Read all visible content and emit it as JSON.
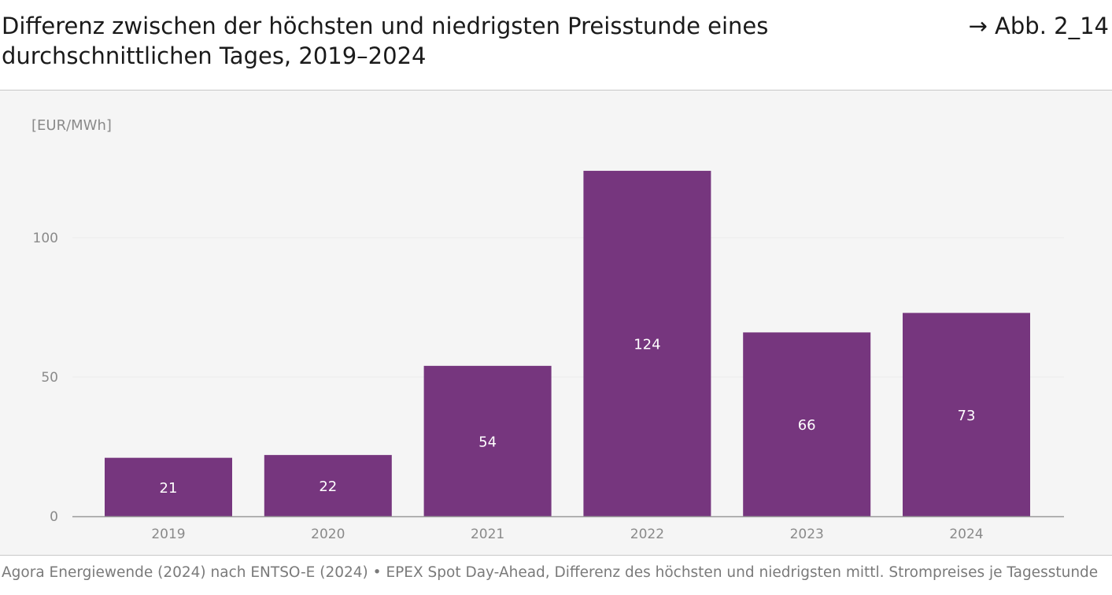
{
  "header": {
    "title": "Differenz zwischen der höchsten und niedrigsten Preisstunde eines durchschnittlichen Tages, 2019–2024",
    "figure_ref": "→ Abb. 2_14"
  },
  "footer": {
    "source": "Agora Energiewende (2024) nach ENTSO-E (2024) • EPEX Spot Day-Ahead, Differenz des höchsten und niedrigsten mittl. Strompreises je Tagesstunde"
  },
  "chart_data": {
    "type": "bar",
    "title": "Differenz zwischen der höchsten und niedrigsten Preisstunde eines durchschnittlichen Tages, 2019–2024",
    "unit": "[EUR/MWh]",
    "xlabel": "",
    "ylabel": "[EUR/MWh]",
    "categories": [
      "2019",
      "2020",
      "2021",
      "2022",
      "2023",
      "2024"
    ],
    "values": [
      21,
      22,
      54,
      124,
      66,
      73
    ],
    "value_labels": [
      "21",
      "22",
      "54",
      "124",
      "66",
      "73"
    ],
    "ylim": [
      0,
      140
    ],
    "yticks": [
      0,
      50,
      100
    ],
    "ytick_labels": [
      "0",
      "50",
      "100"
    ],
    "grid": true,
    "legend": "none",
    "colors": {
      "bar": "#76367e",
      "panel": "#f5f5f5",
      "gridline": "#ebebeb",
      "axis": "#9a9a9a"
    }
  }
}
